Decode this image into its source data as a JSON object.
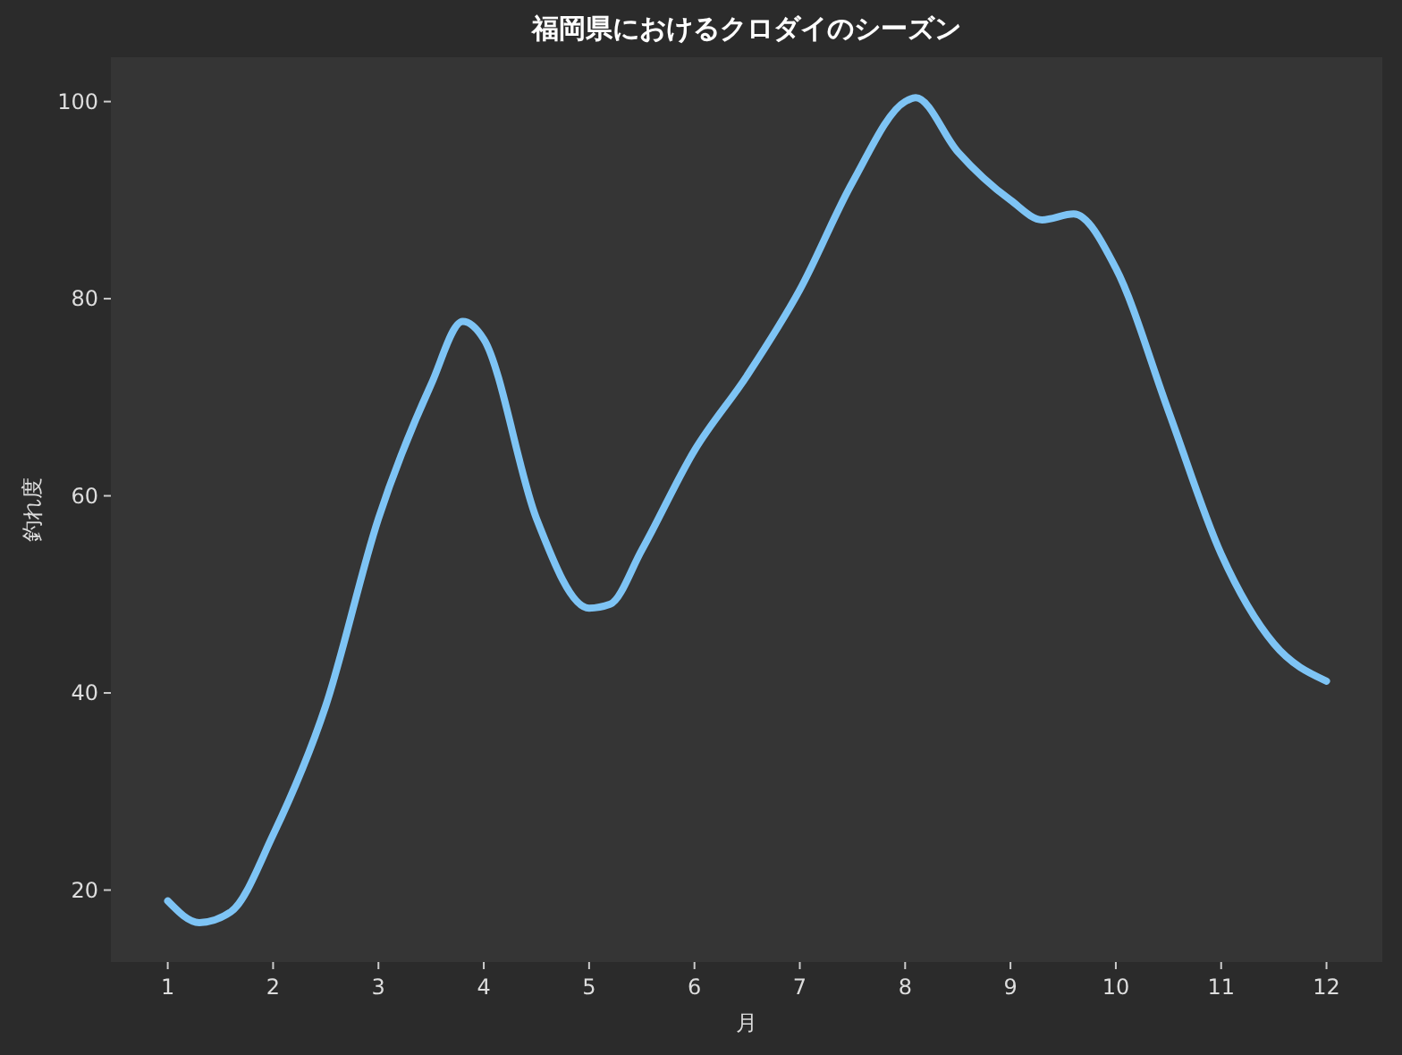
{
  "chart_data": {
    "type": "line",
    "title": "福岡県におけるクロダイのシーズン",
    "xlabel": "月",
    "ylabel": "釣れ度",
    "x": [
      1,
      1.3,
      1.6,
      2,
      2.5,
      3,
      3.5,
      3.8,
      4,
      4.5,
      5,
      5.2,
      5.5,
      6,
      6.5,
      7,
      7.5,
      8,
      8.1,
      8.5,
      9,
      9.3,
      9.6,
      10,
      10.5,
      11,
      11.5,
      12
    ],
    "series": [
      {
        "color": "#7ec4f5",
        "values": [
          18.9,
          16.7,
          17.8,
          25.6,
          38.7,
          57.7,
          71.3,
          77.7,
          75.9,
          57.7,
          48.6,
          49,
          54.5,
          64.6,
          72.2,
          80.9,
          91.8,
          100,
          100.4,
          94.9,
          90,
          88,
          88.6,
          83.1,
          68.6,
          54.1,
          45,
          41.2
        ]
      }
    ],
    "xlim": [
      0.46,
      12.53
    ],
    "xticks": [
      1,
      2,
      3,
      4,
      5,
      6,
      7,
      8,
      9,
      10,
      11,
      12
    ],
    "ylim": [
      12.7,
      104.5
    ],
    "yticks": [
      20,
      40,
      60,
      80,
      100
    ],
    "grid": false,
    "marker": "none",
    "line_style": "solid"
  }
}
